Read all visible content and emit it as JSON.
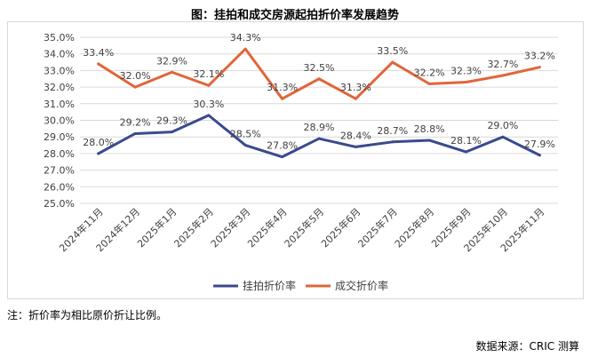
{
  "title": "图：挂拍和成交房源起拍折价率发展趋势",
  "note": "注：折价率为相比原价折让比例。",
  "source": "数据来源：CRIC 测算",
  "chart_data": {
    "type": "line",
    "categories": [
      "2024年11月",
      "2024年12月",
      "2025年1月",
      "2025年2月",
      "2025年3月",
      "2025年4月",
      "2025年5月",
      "2025年6月",
      "2025年7月",
      "2025年8月",
      "2025年9月",
      "2025年10月",
      "2025年11月"
    ],
    "series": [
      {
        "name": "挂拍折价率",
        "color": "#3b4a8e",
        "values": [
          28.0,
          29.2,
          29.3,
          30.3,
          28.5,
          27.8,
          28.9,
          28.4,
          28.7,
          28.8,
          28.1,
          29.0,
          27.9
        ]
      },
      {
        "name": "成交折价率",
        "color": "#e0663a",
        "values": [
          33.4,
          32.0,
          32.9,
          32.1,
          34.3,
          31.3,
          32.5,
          31.3,
          33.5,
          32.2,
          32.3,
          32.7,
          33.2
        ]
      }
    ],
    "ylim": [
      25.0,
      35.0
    ],
    "ystep": 1.0,
    "yticks": [
      "25.0%",
      "26.0%",
      "27.0%",
      "28.0%",
      "29.0%",
      "30.0%",
      "31.0%",
      "32.0%",
      "33.0%",
      "34.0%",
      "35.0%"
    ],
    "value_suffix": "%",
    "grid": "horizontal",
    "legend": "bottom-center"
  }
}
